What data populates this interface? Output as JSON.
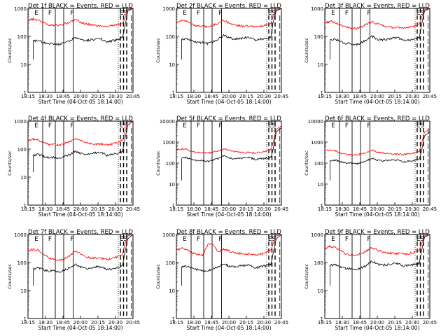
{
  "chart_data": {
    "type": "line",
    "layout": "3x3 grid",
    "shared": {
      "xlabel": "Start Time (04-Oct-05 18:14:00)",
      "ylabel": "Counts/sec",
      "x_tick_labels": [
        "18:15",
        "18:30",
        "18:45",
        "20:00",
        "20:15",
        "20:30",
        "20:45"
      ],
      "y_scale": "log",
      "series": [
        {
          "name": "Events",
          "color": "#000000"
        },
        {
          "name": "LLD",
          "color": "#ff0000"
        }
      ],
      "x": [
        0,
        0.05,
        0.1,
        0.15,
        0.2,
        0.25,
        0.3,
        0.35,
        0.4,
        0.45,
        0.5,
        0.55,
        0.6,
        0.65,
        0.7,
        0.75,
        0.8,
        0.85,
        0.9,
        0.92,
        0.95,
        1.0
      ],
      "marker_labels": [
        "E",
        "F",
        "F",
        "ES"
      ]
    },
    "panels": [
      {
        "title": "Det 1f BLACK = Events, RED = LLD",
        "ylim": [
          1,
          1000
        ],
        "y_tick_labels": [
          "1",
          "10",
          "100",
          "1000"
        ],
        "events": [
          null,
          70,
          70,
          60,
          55,
          55,
          52,
          60,
          70,
          90,
          75,
          70,
          75,
          80,
          80,
          65,
          70,
          75,
          90,
          200,
          800,
          1000
        ],
        "lld": [
          380,
          420,
          380,
          300,
          260,
          260,
          250,
          280,
          320,
          400,
          320,
          280,
          260,
          240,
          240,
          230,
          240,
          260,
          300,
          400,
          900,
          1000
        ]
      },
      {
        "title": "Det 2f BLACK = Events, RED = LLD",
        "ylim": [
          1,
          1000
        ],
        "y_tick_labels": [
          "1",
          "10",
          "100",
          "1000"
        ],
        "events": [
          null,
          80,
          85,
          70,
          60,
          60,
          55,
          65,
          80,
          110,
          90,
          80,
          85,
          90,
          95,
          75,
          80,
          85,
          95,
          300,
          800,
          1000
        ],
        "lld": [
          320,
          380,
          340,
          270,
          240,
          230,
          220,
          250,
          300,
          380,
          300,
          260,
          240,
          230,
          230,
          220,
          230,
          250,
          300,
          500,
          900,
          1000
        ]
      },
      {
        "title": "Det 3f BLACK = Events, RED = LLD",
        "ylim": [
          1,
          1000
        ],
        "y_tick_labels": [
          "1",
          "10",
          "100",
          "1000"
        ],
        "events": [
          null,
          75,
          80,
          65,
          55,
          55,
          50,
          60,
          75,
          100,
          80,
          75,
          80,
          85,
          90,
          70,
          75,
          80,
          90,
          250,
          800,
          1000
        ],
        "lld": [
          300,
          350,
          310,
          250,
          210,
          200,
          190,
          220,
          270,
          340,
          280,
          240,
          220,
          210,
          210,
          200,
          210,
          230,
          280,
          450,
          900,
          1000
        ]
      },
      {
        "title": "Det 4f BLACK = Events, RED = LLD",
        "ylim": [
          1,
          1000
        ],
        "y_tick_labels": [
          "1",
          "10",
          "100",
          "1000"
        ],
        "events": [
          null,
          60,
          65,
          55,
          50,
          50,
          45,
          55,
          65,
          85,
          70,
          65,
          70,
          75,
          75,
          60,
          65,
          70,
          80,
          200,
          700,
          1000
        ],
        "lld": [
          200,
          230,
          210,
          170,
          150,
          150,
          140,
          160,
          190,
          240,
          200,
          170,
          160,
          150,
          150,
          145,
          150,
          170,
          210,
          350,
          900,
          1000
        ]
      },
      {
        "title": "Det 5f BLACK = Events, RED = LLD",
        "ylim": [
          1,
          10000
        ],
        "y_tick_labels": [
          "1",
          "10",
          "100",
          "1000",
          "10000"
        ],
        "events": [
          null,
          170,
          180,
          150,
          130,
          130,
          120,
          140,
          170,
          220,
          180,
          160,
          170,
          180,
          180,
          150,
          160,
          170,
          190,
          400,
          3000,
          5000
        ],
        "lld": [
          420,
          480,
          440,
          360,
          320,
          310,
          300,
          330,
          390,
          500,
          410,
          360,
          340,
          320,
          320,
          310,
          320,
          360,
          450,
          900,
          4000,
          6000
        ]
      },
      {
        "title": "Det 6f BLACK = Events, RED = LLD",
        "ylim": [
          1,
          10000
        ],
        "y_tick_labels": [
          "1",
          "10",
          "100",
          "1000",
          "10000"
        ],
        "events": [
          null,
          130,
          140,
          115,
          100,
          100,
          90,
          105,
          130,
          170,
          140,
          125,
          130,
          140,
          140,
          115,
          125,
          130,
          150,
          350,
          2000,
          3000
        ],
        "lld": [
          380,
          420,
          380,
          300,
          260,
          250,
          240,
          270,
          330,
          420,
          340,
          300,
          280,
          270,
          270,
          260,
          270,
          300,
          380,
          800,
          3000,
          4000
        ]
      },
      {
        "title": "Det 7f BLACK = Events, RED = LLD",
        "ylim": [
          1,
          1000
        ],
        "y_tick_labels": [
          "1",
          "10",
          "100",
          "1000"
        ],
        "events": [
          null,
          60,
          65,
          55,
          50,
          50,
          45,
          55,
          65,
          85,
          70,
          60,
          65,
          70,
          70,
          55,
          60,
          65,
          75,
          200,
          700,
          1000
        ],
        "lld": [
          260,
          300,
          280,
          200,
          140,
          130,
          120,
          140,
          180,
          250,
          200,
          160,
          150,
          140,
          140,
          130,
          140,
          160,
          200,
          400,
          900,
          1000
        ]
      },
      {
        "title": "Det 8f BLACK = Events, RED = LLD",
        "ylim": [
          1,
          1000
        ],
        "y_tick_labels": [
          "1",
          "10",
          "100",
          "1000"
        ],
        "events": [
          null,
          70,
          75,
          60,
          55,
          50,
          50,
          60,
          70,
          90,
          75,
          70,
          75,
          80,
          80,
          65,
          70,
          75,
          85,
          200,
          700,
          1000
        ],
        "lld": [
          280,
          320,
          300,
          220,
          190,
          180,
          450,
          450,
          230,
          300,
          260,
          220,
          210,
          200,
          200,
          190,
          200,
          220,
          280,
          450,
          900,
          1000
        ]
      },
      {
        "title": "Det 9f BLACK = Events, RED = LLD",
        "ylim": [
          1,
          1000
        ],
        "y_tick_labels": [
          "1",
          "10",
          "100",
          "1000"
        ],
        "events": [
          null,
          80,
          85,
          70,
          60,
          60,
          55,
          65,
          80,
          110,
          90,
          80,
          85,
          90,
          95,
          75,
          80,
          85,
          95,
          250,
          800,
          1000
        ],
        "lld": [
          320,
          380,
          340,
          270,
          200,
          190,
          180,
          210,
          260,
          340,
          280,
          240,
          220,
          210,
          210,
          200,
          210,
          230,
          280,
          450,
          900,
          1000
        ]
      }
    ]
  }
}
